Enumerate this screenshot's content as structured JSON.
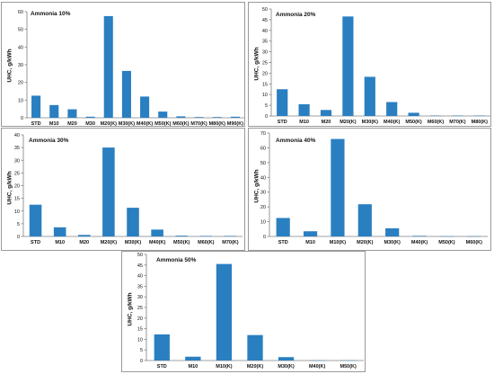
{
  "colors": {
    "bar": "#2a7fc1",
    "axis": "#808080",
    "frame": "#9a9a9a"
  },
  "chart_data": [
    {
      "type": "bar",
      "title": "Ammonia 10%",
      "ylabel": "UHC, g/kWh",
      "xlabel": "",
      "ylim": [
        0,
        60
      ],
      "yticks": [
        0,
        10,
        20,
        30,
        40,
        50,
        60
      ],
      "categories": [
        "STD",
        "M10",
        "M20",
        "M30",
        "M20(K)",
        "M30(K)",
        "M40(K)",
        "M50(K)",
        "M60(K)",
        "M70(K)",
        "M80(K)",
        "M90(K)"
      ],
      "values": [
        12.5,
        7.2,
        4.8,
        0.6,
        57.5,
        26.5,
        12.0,
        3.5,
        0.8,
        0.4,
        0.4,
        0.6
      ]
    },
    {
      "type": "bar",
      "title": "Ammonia 20%",
      "ylabel": "UHC, g/kWh",
      "xlabel": "",
      "ylim": [
        0,
        50
      ],
      "yticks": [
        0,
        5,
        10,
        15,
        20,
        25,
        30,
        35,
        40,
        45,
        50
      ],
      "categories": [
        "STD",
        "M10",
        "M20",
        "M20(K)",
        "M30(K)",
        "M40(K)",
        "M50(K)",
        "M60(K)",
        "M70(K)",
        "M80(K)"
      ],
      "values": [
        12.5,
        5.5,
        2.8,
        46.5,
        18.3,
        6.5,
        1.5,
        0.2,
        0.2,
        0.2
      ]
    },
    {
      "type": "bar",
      "title": "Ammonia 30%",
      "ylabel": "UHC, g/kWh",
      "xlabel": "",
      "ylim": [
        0,
        40
      ],
      "yticks": [
        0,
        5,
        10,
        15,
        20,
        25,
        30,
        35,
        40
      ],
      "categories": [
        "STD",
        "M10",
        "M20",
        "M20(K)",
        "M30(K)",
        "M40(K)",
        "M50(K)",
        "M60(K)",
        "M70(K)"
      ],
      "values": [
        12.5,
        3.6,
        0.6,
        35.0,
        11.3,
        2.7,
        0.3,
        0.2,
        0.2
      ]
    },
    {
      "type": "bar",
      "title": "Ammonia 40%",
      "ylabel": "UHC, g/kWh",
      "xlabel": "",
      "ylim": [
        0,
        70
      ],
      "yticks": [
        0,
        10,
        20,
        30,
        40,
        50,
        60,
        70
      ],
      "categories": [
        "STD",
        "M10",
        "M10(K)",
        "M20(K)",
        "M30(K)",
        "M40(K)",
        "M50(K)",
        "M60(K)"
      ],
      "values": [
        12.5,
        3.5,
        66.0,
        21.8,
        5.5,
        0.4,
        0.1,
        0.1
      ]
    },
    {
      "type": "bar",
      "title": "Ammonia 50%",
      "ylabel": "UHC, g/kWh",
      "xlabel": "",
      "ylim": [
        0,
        50
      ],
      "yticks": [
        0,
        5,
        10,
        15,
        20,
        25,
        30,
        35,
        40,
        45,
        50
      ],
      "categories": [
        "STD",
        "M10",
        "M10(K)",
        "M20(K)",
        "M30(K)",
        "M40(K)",
        "M50(K)"
      ],
      "values": [
        12.3,
        1.8,
        45.5,
        12.0,
        1.6,
        0.1,
        0.1
      ]
    }
  ]
}
